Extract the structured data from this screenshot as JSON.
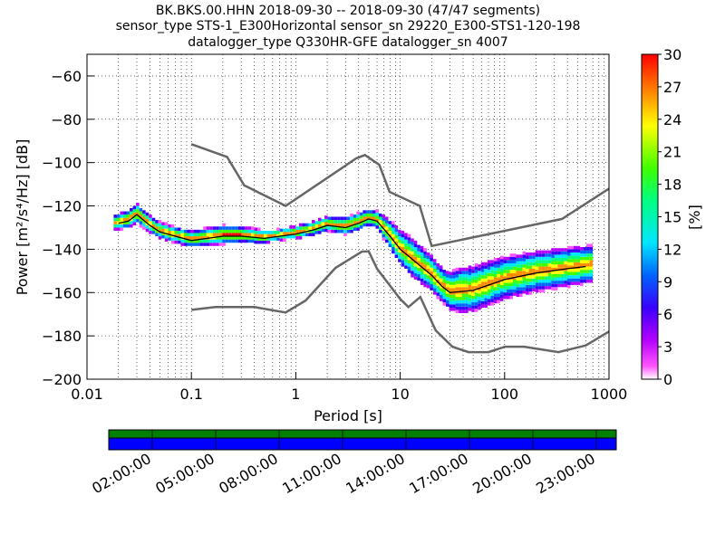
{
  "chart_data": {
    "type": "heatmap",
    "title_lines": [
      "BK.BKS.00.HHN   2018-09-30 -- 2018-09-30  (47/47 segments)",
      "sensor_type STS-1_E300Horizontal sensor_sn 29220_E300-STS1-120-198",
      "datalogger_type Q330HR-GFE datalogger_sn 4007"
    ],
    "xlabel": "Period [s]",
    "ylabel": "Power [m²/s⁴/Hz] [dB]",
    "x_scale": "log",
    "xlim": [
      0.01,
      1000
    ],
    "ylim": [
      -200,
      -50
    ],
    "grid": true,
    "x_ticks": [
      {
        "value": 0.01,
        "label": "0.01"
      },
      {
        "value": 0.1,
        "label": "0.1"
      },
      {
        "value": 1,
        "label": "1"
      },
      {
        "value": 10,
        "label": "10"
      },
      {
        "value": 100,
        "label": "100"
      },
      {
        "value": 1000,
        "label": "1000"
      }
    ],
    "y_ticks": [
      {
        "value": -60,
        "label": "−60"
      },
      {
        "value": -80,
        "label": "−80"
      },
      {
        "value": -100,
        "label": "−100"
      },
      {
        "value": -120,
        "label": "−120"
      },
      {
        "value": -140,
        "label": "−140"
      },
      {
        "value": -160,
        "label": "−160"
      },
      {
        "value": -180,
        "label": "−180"
      },
      {
        "value": -200,
        "label": "−200"
      }
    ],
    "colorbar": {
      "label": "[%]",
      "range": [
        0,
        30
      ],
      "ticks": [
        "0",
        "3",
        "6",
        "9",
        "12",
        "15",
        "18",
        "21",
        "24",
        "27",
        "30"
      ]
    },
    "nhnm": [
      {
        "x": 0.1,
        "y": -91.5
      },
      {
        "x": 0.22,
        "y": -97.4
      },
      {
        "x": 0.32,
        "y": -110.5
      },
      {
        "x": 0.8,
        "y": -120
      },
      {
        "x": 3.8,
        "y": -98
      },
      {
        "x": 4.6,
        "y": -96.5
      },
      {
        "x": 6.3,
        "y": -101
      },
      {
        "x": 7.9,
        "y": -113.5
      },
      {
        "x": 15.4,
        "y": -120
      },
      {
        "x": 20,
        "y": -138.5
      },
      {
        "x": 354.8,
        "y": -126
      },
      {
        "x": 1000,
        "y": -112
      }
    ],
    "nlnm": [
      {
        "x": 0.1,
        "y": -168
      },
      {
        "x": 0.17,
        "y": -166.7
      },
      {
        "x": 0.4,
        "y": -166.7
      },
      {
        "x": 0.8,
        "y": -169.2
      },
      {
        "x": 1.24,
        "y": -163.7
      },
      {
        "x": 2.4,
        "y": -148.6
      },
      {
        "x": 4.3,
        "y": -141.1
      },
      {
        "x": 5,
        "y": -141
      },
      {
        "x": 6,
        "y": -149
      },
      {
        "x": 10,
        "y": -163
      },
      {
        "x": 12,
        "y": -166.7
      },
      {
        "x": 15.6,
        "y": -162
      },
      {
        "x": 21.9,
        "y": -177.5
      },
      {
        "x": 31.6,
        "y": -185
      },
      {
        "x": 45,
        "y": -187.5
      },
      {
        "x": 70,
        "y": -187.5
      },
      {
        "x": 101,
        "y": -185
      },
      {
        "x": 154,
        "y": -185
      },
      {
        "x": 328,
        "y": -187.5
      },
      {
        "x": 600,
        "y": -184.4
      },
      {
        "x": 1000,
        "y": -178
      }
    ],
    "median": [
      {
        "x": 0.02,
        "y": -128
      },
      {
        "x": 0.025,
        "y": -127
      },
      {
        "x": 0.03,
        "y": -124
      },
      {
        "x": 0.04,
        "y": -129
      },
      {
        "x": 0.05,
        "y": -132
      },
      {
        "x": 0.07,
        "y": -134
      },
      {
        "x": 0.1,
        "y": -136
      },
      {
        "x": 0.2,
        "y": -134
      },
      {
        "x": 0.3,
        "y": -134
      },
      {
        "x": 0.5,
        "y": -135
      },
      {
        "x": 1,
        "y": -133
      },
      {
        "x": 1.5,
        "y": -131
      },
      {
        "x": 2,
        "y": -129
      },
      {
        "x": 3,
        "y": -130
      },
      {
        "x": 4,
        "y": -128
      },
      {
        "x": 5,
        "y": -126
      },
      {
        "x": 6,
        "y": -127
      },
      {
        "x": 8,
        "y": -134
      },
      {
        "x": 10,
        "y": -140
      },
      {
        "x": 15,
        "y": -147
      },
      {
        "x": 20,
        "y": -152
      },
      {
        "x": 25,
        "y": -157
      },
      {
        "x": 30,
        "y": -160
      },
      {
        "x": 50,
        "y": -159
      },
      {
        "x": 100,
        "y": -154
      },
      {
        "x": 200,
        "y": -151
      },
      {
        "x": 400,
        "y": -149
      },
      {
        "x": 600,
        "y": -148
      }
    ],
    "density_band": {
      "x": [
        0.018,
        0.025,
        0.03,
        0.04,
        0.06,
        0.1,
        0.2,
        0.4,
        0.7,
        1,
        1.5,
        2,
        3,
        4,
        5,
        6,
        8,
        10,
        13,
        16,
        20,
        25,
        30,
        40,
        60,
        100,
        200,
        400,
        700
      ],
      "upper": [
        -124,
        -122,
        -119,
        -124,
        -128,
        -130,
        -128,
        -130,
        -131,
        -129,
        -127,
        -125,
        -123,
        -121,
        -120,
        -120,
        -121,
        -124,
        -128,
        -134,
        -140,
        -146,
        -148,
        -146,
        -142,
        -140,
        -138,
        -137,
        -136
      ],
      "lower": [
        -133,
        -133,
        -131,
        -135,
        -138,
        -140,
        -140,
        -139,
        -138,
        -137,
        -136,
        -134,
        -134,
        -132,
        -130,
        -131,
        -139,
        -146,
        -152,
        -157,
        -162,
        -167,
        -172,
        -174,
        -170,
        -166,
        -163,
        -161,
        -159
      ],
      "peak_pct": 30
    },
    "time_axis": {
      "labels": [
        "02:00:00",
        "05:00:00",
        "08:00:00",
        "11:00:00",
        "14:00:00",
        "17:00:00",
        "20:00:00",
        "23:00:00"
      ],
      "rows": [
        {
          "name": "data",
          "color": "#008000"
        },
        {
          "name": "gaps",
          "color": "#0000ff"
        }
      ]
    }
  }
}
